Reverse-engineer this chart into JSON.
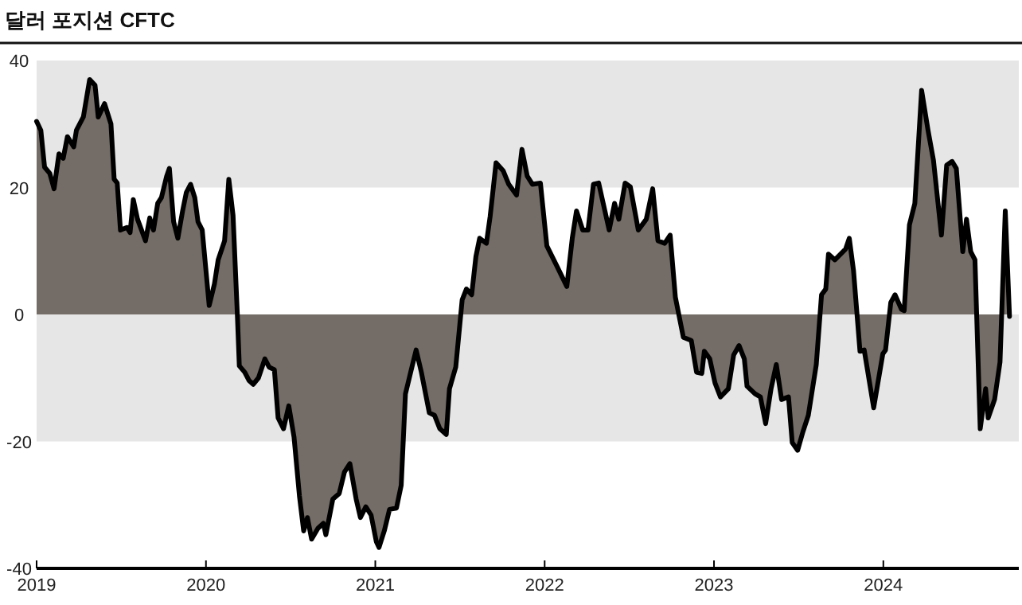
{
  "chart_data": {
    "type": "area",
    "title": "달러 포지션 CFTC",
    "xlim": [
      2019,
      2024.8
    ],
    "xticks": [
      2019,
      2020,
      2021,
      2022,
      2023,
      2024
    ],
    "ylim": [
      -40,
      40
    ],
    "yticks": [
      -40,
      -20,
      0,
      20,
      40
    ],
    "grid": false,
    "bands": [
      {
        "axis": "y",
        "from": 20,
        "to": 40,
        "color": "#e6e6e6"
      },
      {
        "axis": "y",
        "from": -20,
        "to": 0,
        "color": "#e6e6e6"
      }
    ],
    "series": [
      {
        "color": "#746c66",
        "x": [
          2019.0,
          2019.025,
          2019.047,
          2019.078,
          2019.103,
          2019.132,
          2019.157,
          2019.182,
          2019.219,
          2019.235,
          2019.276,
          2019.313,
          2019.345,
          2019.364,
          2019.401,
          2019.439,
          2019.458,
          2019.476,
          2019.495,
          2019.533,
          2019.552,
          2019.571,
          2019.596,
          2019.643,
          2019.668,
          2019.69,
          2019.715,
          2019.737,
          2019.768,
          2019.784,
          2019.809,
          2019.834,
          2019.862,
          2019.884,
          2019.909,
          2019.934,
          2019.953,
          2019.978,
          2020.019,
          2020.05,
          2020.072,
          2020.11,
          2020.135,
          2020.16,
          2020.185,
          2020.197,
          2020.229,
          2020.254,
          2020.279,
          2020.31,
          2020.348,
          2020.373,
          2020.404,
          2020.426,
          2020.458,
          2020.489,
          2020.52,
          2020.552,
          2020.577,
          2020.599,
          2020.624,
          2020.661,
          2020.693,
          2020.708,
          2020.749,
          2020.787,
          2020.818,
          2020.85,
          2020.887,
          2020.912,
          2020.944,
          2020.975,
          2021.006,
          2021.022,
          2021.053,
          2021.084,
          2021.125,
          2021.153,
          2021.178,
          2021.209,
          2021.241,
          2021.272,
          2021.319,
          2021.35,
          2021.381,
          2021.419,
          2021.438,
          2021.475,
          2021.513,
          2021.538,
          2021.569,
          2021.594,
          2021.616,
          2021.656,
          2021.678,
          2021.713,
          2021.756,
          2021.788,
          2021.834,
          2021.866,
          2021.897,
          2021.928,
          2021.975,
          2022.013,
          2022.069,
          2022.131,
          2022.163,
          2022.188,
          2022.225,
          2022.256,
          2022.288,
          2022.319,
          2022.381,
          2022.413,
          2022.438,
          2022.475,
          2022.506,
          2022.553,
          2022.6,
          2022.638,
          2022.669,
          2022.709,
          2022.741,
          2022.772,
          2022.819,
          2022.866,
          2022.897,
          2022.928,
          2022.943,
          2022.975,
          2023.006,
          2023.038,
          2023.085,
          2023.116,
          2023.148,
          2023.179,
          2023.195,
          2023.242,
          2023.274,
          2023.305,
          2023.337,
          2023.368,
          2023.399,
          2023.44,
          2023.462,
          2023.494,
          2023.525,
          2023.557,
          2023.604,
          2023.635,
          2023.66,
          2023.676,
          2023.714,
          2023.777,
          2023.799,
          2023.824,
          2023.862,
          2023.887,
          2023.943,
          2023.997,
          2024.013,
          2024.044,
          2024.069,
          2024.107,
          2024.123,
          2024.154,
          2024.186,
          2024.226,
          2024.264,
          2024.296,
          2024.343,
          2024.374,
          2024.406,
          2024.431,
          2024.469,
          2024.491,
          2024.516,
          2024.541,
          2024.572,
          2024.604,
          2024.619,
          2024.657,
          2024.689,
          2024.72,
          2024.745
        ],
        "values": [
          30.4,
          29,
          23.2,
          22.2,
          19.8,
          25.3,
          24.6,
          28,
          26.4,
          29,
          31.1,
          37,
          36.1,
          31.1,
          33.2,
          30,
          21.3,
          20.7,
          13.3,
          13.7,
          12.9,
          18.1,
          15,
          11.6,
          15.2,
          13.3,
          17.5,
          18.4,
          21.8,
          23,
          14.6,
          12,
          16.3,
          19.2,
          20.5,
          18.4,
          14.6,
          13.3,
          1.4,
          4.8,
          8.6,
          11.6,
          21.3,
          15.6,
          0.2,
          -8.1,
          -9.1,
          -10.4,
          -11,
          -10,
          -7,
          -8.3,
          -8.7,
          -16.3,
          -18,
          -14.4,
          -19.3,
          -28.6,
          -34.1,
          -32,
          -35.4,
          -33.7,
          -32.9,
          -34.7,
          -29.1,
          -28.2,
          -24.8,
          -23.5,
          -29.1,
          -32,
          -30.3,
          -31.6,
          -35.8,
          -36.7,
          -34.1,
          -30.7,
          -30.5,
          -26.9,
          -12.5,
          -9.1,
          -5.6,
          -9.1,
          -15.5,
          -15.9,
          -18,
          -18.9,
          -11.7,
          -8.3,
          2.3,
          4,
          3.1,
          9.1,
          12,
          11.2,
          15.4,
          23.9,
          22.6,
          20.5,
          18.8,
          26,
          21.8,
          20.5,
          20.7,
          10.8,
          7.8,
          4.4,
          12,
          16.3,
          13.3,
          13.3,
          20.5,
          20.7,
          13.3,
          17.5,
          15,
          20.7,
          20.1,
          13.3,
          15,
          19.8,
          11.6,
          11.2,
          12.5,
          2.7,
          -3.6,
          -4.1,
          -9.1,
          -9.3,
          -5.8,
          -7,
          -10.8,
          -13,
          -11.7,
          -6.4,
          -4.9,
          -7,
          -11.3,
          -12.5,
          -13,
          -17.2,
          -11.7,
          -7.9,
          -13.4,
          -13,
          -20.2,
          -21.4,
          -18.5,
          -15.9,
          -7.9,
          3.1,
          4,
          9.5,
          8.6,
          10.3,
          12,
          6.9,
          -5.8,
          -5.6,
          -14.7,
          -6.2,
          -5.6,
          1.9,
          3.1,
          0.8,
          0.6,
          14.1,
          17.5,
          35.3,
          29,
          24.3,
          12.5,
          23.5,
          24.1,
          23,
          9.9,
          15,
          9.9,
          8.6,
          -18,
          -11.7,
          -16.3,
          -13.4,
          -7.5,
          16.3,
          -0.3
        ]
      }
    ]
  }
}
